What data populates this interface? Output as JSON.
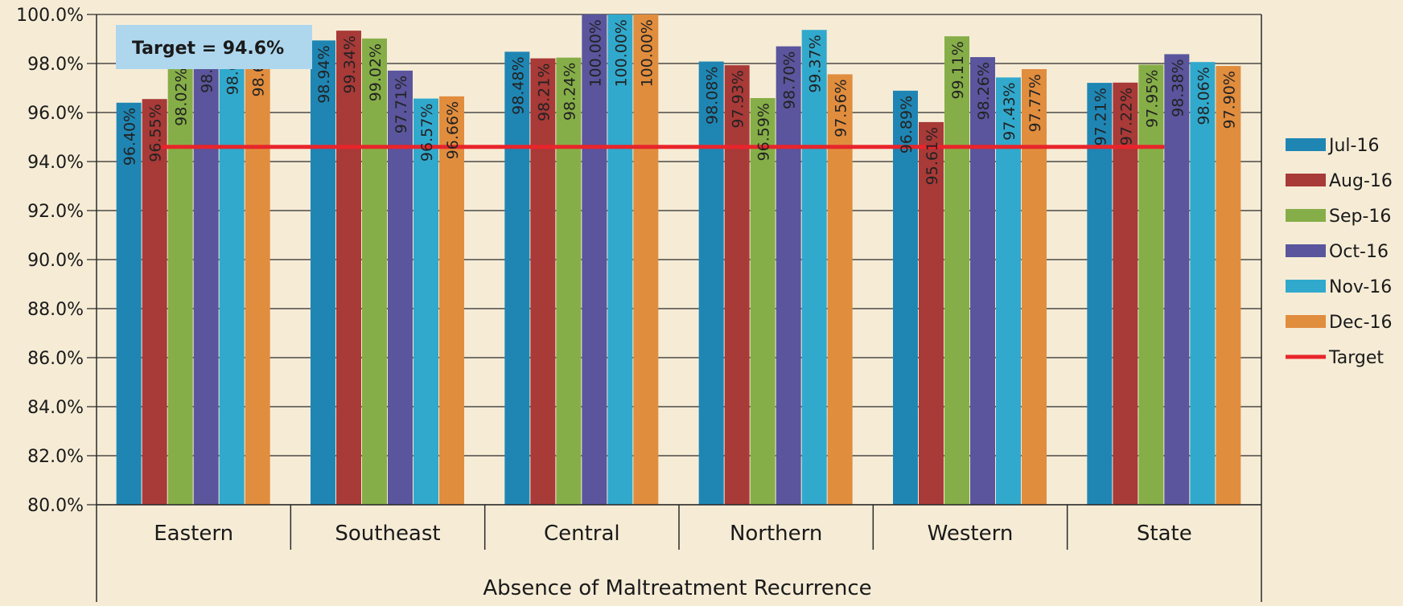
{
  "chart_data": {
    "type": "bar",
    "title": "",
    "xlabel": "Absence of Maltreatment Recurrence",
    "ylabel": "",
    "ylim": [
      80,
      100
    ],
    "y_ticks": [
      "80.0%",
      "82.0%",
      "84.0%",
      "86.0%",
      "88.0%",
      "90.0%",
      "92.0%",
      "94.0%",
      "96.0%",
      "98.0%",
      "100.0%"
    ],
    "grid": true,
    "legend_position": "right",
    "categories": [
      "Eastern",
      "Southeast",
      "Central",
      "Northern",
      "Western",
      "State"
    ],
    "series": [
      {
        "name": "Jul-16",
        "color": "#1f86b4",
        "values": [
          96.4,
          98.94,
          98.48,
          98.08,
          96.89,
          97.21
        ],
        "labels": [
          "96.40%",
          "98.94%",
          "98.48%",
          "98.08%",
          "96.89%",
          "97.21%"
        ]
      },
      {
        "name": "Aug-16",
        "color": "#a83a38",
        "values": [
          96.55,
          99.34,
          98.21,
          97.93,
          95.61,
          97.22
        ],
        "labels": [
          "96.55%",
          "99.34%",
          "98.21%",
          "97.93%",
          "95.61%",
          "97.22%"
        ]
      },
      {
        "name": "Sep-16",
        "color": "#86ae48",
        "values": [
          98.02,
          99.02,
          98.24,
          96.59,
          99.11,
          97.95
        ],
        "labels": [
          "98.02%",
          "99.02%",
          "98.24%",
          "96.59%",
          "99.11%",
          "97.95%"
        ]
      },
      {
        "name": "Oct-16",
        "color": "#5a559c",
        "values": [
          98.77,
          97.71,
          100.0,
          98.7,
          98.26,
          98.38
        ],
        "labels": [
          "98.77",
          "97.71%",
          "100.00%",
          "98.70%",
          "98.26%",
          "98.38%"
        ]
      },
      {
        "name": "Nov-16",
        "color": "#31a9cd",
        "values": [
          98.69,
          96.57,
          100.0,
          99.37,
          97.43,
          98.06
        ],
        "labels": [
          "98.69",
          "96.57%",
          "100.00%",
          "99.37%",
          "97.43%",
          "98.06%"
        ]
      },
      {
        "name": "Dec-16",
        "color": "#e18d3e",
        "values": [
          98.62,
          96.66,
          100.0,
          97.56,
          97.77,
          97.9
        ],
        "labels": [
          "98.62",
          "96.66%",
          "100.00%",
          "97.56%",
          "97.77%",
          "97.90%"
        ]
      }
    ],
    "target": {
      "name": "Target",
      "value": 94.6,
      "color": "#e8252b"
    },
    "annotation": {
      "text": "Target = 94.6%",
      "background": "#aed7ee"
    }
  }
}
